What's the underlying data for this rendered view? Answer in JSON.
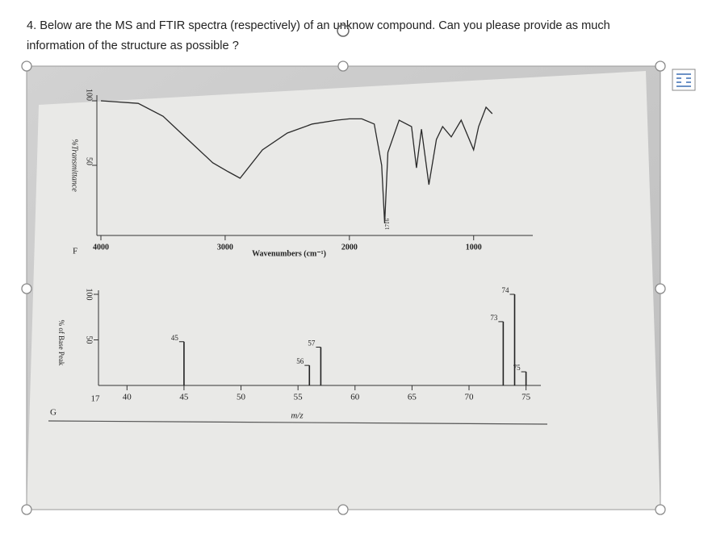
{
  "question": "4. Below are the MS and FTIR spectra (respectively) of an unknow compound. Can you please provide as much information of the structure as possible ?",
  "figure": {
    "ir": {
      "type": "line",
      "panel_label": "F",
      "y_label": "%Transmittance",
      "x_label": "Wavenumbers (cm⁻¹)",
      "x": [
        4000,
        3700,
        3500,
        3300,
        3100,
        2975,
        2880,
        2700,
        2500,
        2300,
        2100,
        2000,
        1900,
        1800,
        1740,
        1716,
        1690,
        1600,
        1500,
        1460,
        1420,
        1360,
        1300,
        1250,
        1180,
        1100,
        1000,
        960,
        900,
        850
      ],
      "values": [
        100,
        98,
        88,
        70,
        52,
        45,
        40,
        62,
        75,
        82,
        85,
        86,
        86,
        82,
        50,
        5,
        60,
        85,
        80,
        48,
        78,
        35,
        70,
        80,
        72,
        85,
        62,
        80,
        95,
        90
      ],
      "xlim": [
        4000,
        550
      ],
      "ylim": [
        0,
        100
      ],
      "xticks": [
        4000,
        3000,
        2000,
        1000
      ],
      "yticks": [
        50,
        100
      ],
      "annotation": "1716"
    },
    "ms": {
      "type": "bar",
      "panel_label": "G",
      "y_label": "% of Base Peak",
      "x_label": "m/z",
      "origin_label": "17",
      "x": [
        45,
        56,
        57,
        73,
        74,
        75
      ],
      "values": [
        48,
        22,
        42,
        70,
        100,
        15
      ],
      "xlim": [
        37.5,
        78
      ],
      "ylim": [
        0,
        100
      ],
      "xticks": [
        40,
        45,
        50,
        55,
        60,
        65,
        70,
        75
      ],
      "yticks": [
        50,
        100
      ]
    }
  }
}
